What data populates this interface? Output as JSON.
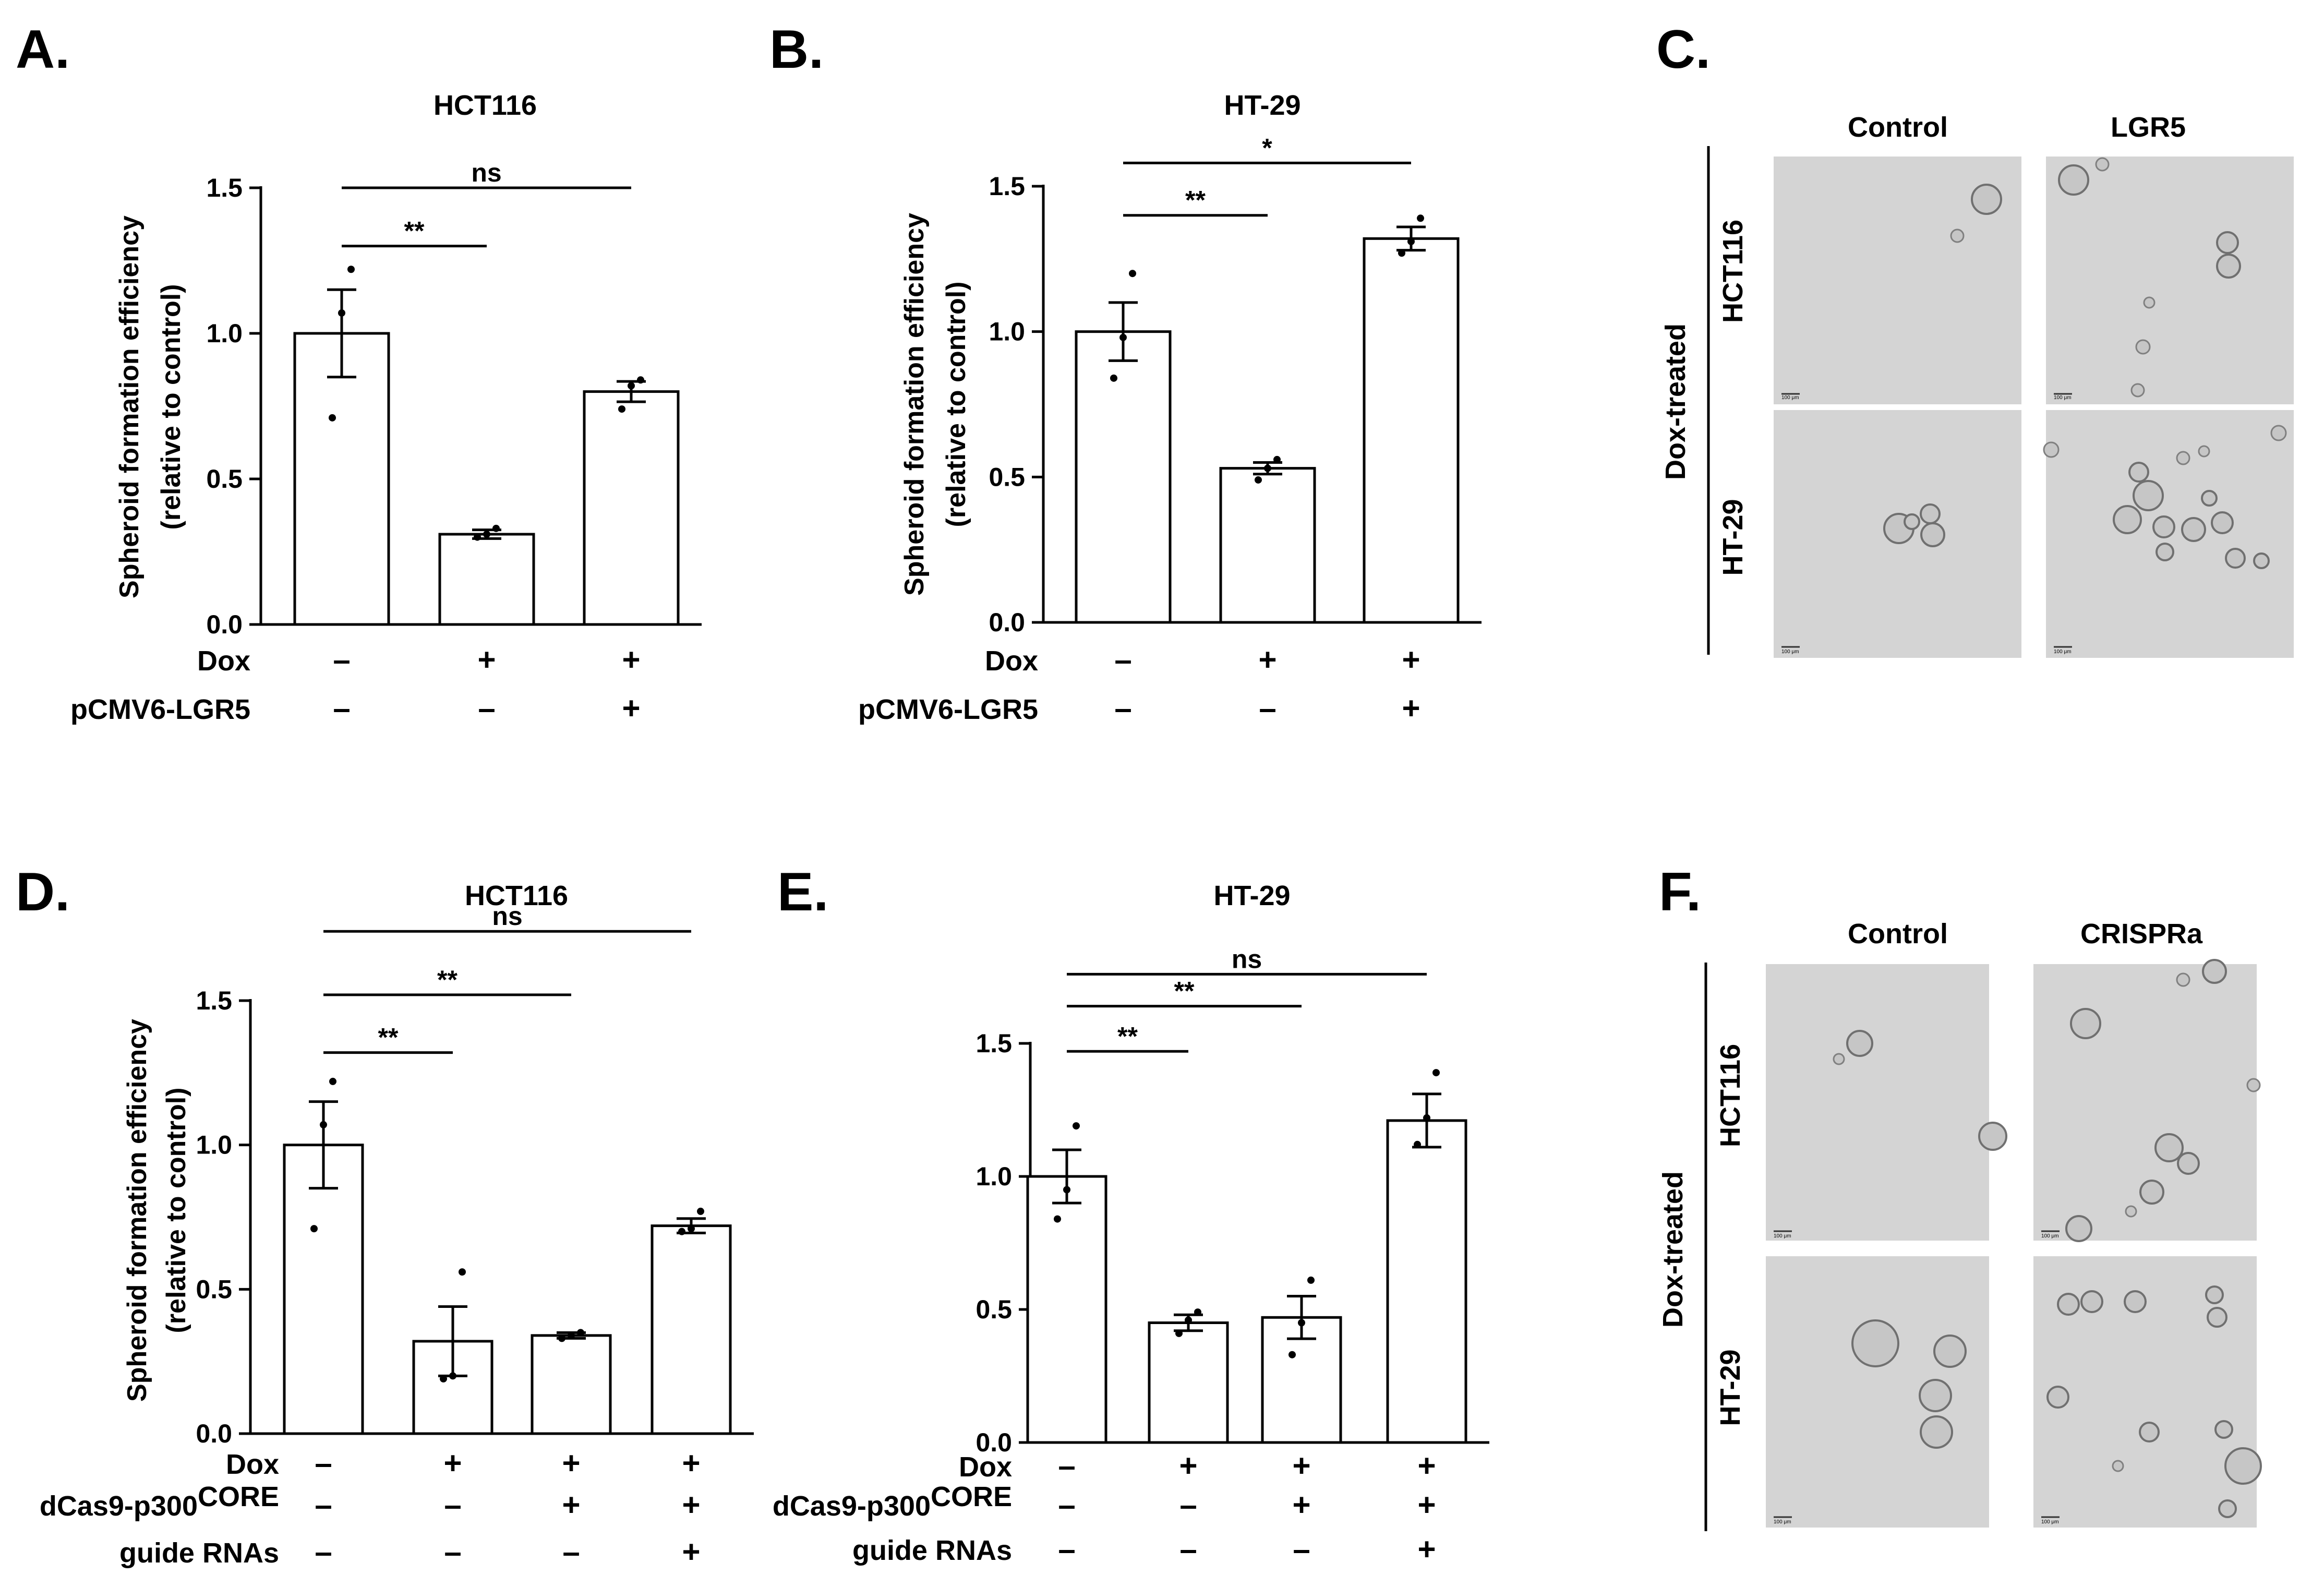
{
  "panels": {
    "A": "A.",
    "B": "B.",
    "C": "C.",
    "D": "D.",
    "E": "E.",
    "F": "F."
  },
  "chart_data": [
    {
      "id": "A",
      "type": "bar",
      "title": "HCT116",
      "ylabel": [
        "Spheroid formation efficiency",
        "(relative to control)"
      ],
      "ylim": [
        0,
        1.5
      ],
      "yticks": [
        "0.0",
        "0.5",
        "1.0",
        "1.5"
      ],
      "bars": [
        {
          "value": 1.0,
          "err": 0.15,
          "points": [
            0.71,
            1.07,
            1.22
          ]
        },
        {
          "value": 0.31,
          "err": 0.015,
          "points": [
            0.3,
            0.31,
            0.33
          ]
        },
        {
          "value": 0.8,
          "err": 0.035,
          "points": [
            0.74,
            0.82,
            0.84
          ]
        }
      ],
      "conditions": [
        {
          "label": "Dox",
          "values": [
            "–",
            "+",
            "+"
          ]
        },
        {
          "label": "pCMV6-LGR5",
          "values": [
            "–",
            "–",
            "+"
          ]
        }
      ],
      "comparisons": [
        {
          "from": 0,
          "to": 1,
          "level": 1.3,
          "label": "**"
        },
        {
          "from": 0,
          "to": 2,
          "level": 1.5,
          "label": "ns"
        }
      ]
    },
    {
      "id": "B",
      "type": "bar",
      "title": "HT-29",
      "ylabel": [
        "Spheroid formation efficiency",
        "(relative to control)"
      ],
      "ylim": [
        0,
        1.5
      ],
      "yticks": [
        "0.0",
        "0.5",
        "1.0",
        "1.5"
      ],
      "bars": [
        {
          "value": 1.0,
          "err": 0.1,
          "points": [
            0.84,
            0.98,
            1.2
          ]
        },
        {
          "value": 0.53,
          "err": 0.02,
          "points": [
            0.49,
            0.53,
            0.56
          ]
        },
        {
          "value": 1.32,
          "err": 0.04,
          "points": [
            1.27,
            1.31,
            1.39
          ]
        }
      ],
      "conditions": [
        {
          "label": "Dox",
          "values": [
            "–",
            "+",
            "+"
          ]
        },
        {
          "label": "pCMV6-LGR5",
          "values": [
            "–",
            "–",
            "+"
          ]
        }
      ],
      "comparisons": [
        {
          "from": 0,
          "to": 1,
          "level": 1.4,
          "label": "**"
        },
        {
          "from": 0,
          "to": 2,
          "level": 1.58,
          "label": "*"
        }
      ]
    },
    {
      "id": "D",
      "type": "bar",
      "title": "HCT116",
      "ylabel": [
        "Spheroid formation efficiency",
        "(relative to control)"
      ],
      "ylim": [
        0,
        1.5
      ],
      "yticks": [
        "0.0",
        "0.5",
        "1.0",
        "1.5"
      ],
      "bars": [
        {
          "value": 1.0,
          "err": 0.15,
          "points": [
            0.71,
            1.07,
            1.22
          ]
        },
        {
          "value": 0.32,
          "err": 0.12,
          "points": [
            0.19,
            0.2,
            0.56
          ]
        },
        {
          "value": 0.34,
          "err": 0.01,
          "points": [
            0.33,
            0.34,
            0.35
          ]
        },
        {
          "value": 0.72,
          "err": 0.025,
          "points": [
            0.7,
            0.71,
            0.77
          ]
        }
      ],
      "conditions": [
        {
          "label": "Dox",
          "values": [
            "–",
            "+",
            "+",
            "+"
          ]
        },
        {
          "label": "dCas9-p300",
          "sup": "CORE",
          "values": [
            "–",
            "–",
            "+",
            "+"
          ]
        },
        {
          "label": "guide RNAs",
          "values": [
            "–",
            "–",
            "–",
            "+"
          ]
        }
      ],
      "comparisons": [
        {
          "from": 0,
          "to": 1,
          "level": 1.32,
          "label": "**"
        },
        {
          "from": 0,
          "to": 2,
          "level": 1.52,
          "label": "**"
        },
        {
          "from": 0,
          "to": 3,
          "level": 1.74,
          "label": "ns"
        }
      ]
    },
    {
      "id": "E",
      "type": "bar",
      "title": "HT-29",
      "ylabel": [],
      "ylim": [
        0,
        1.5
      ],
      "yticks": [
        "0.0",
        "0.5",
        "1.0",
        "1.5"
      ],
      "bars": [
        {
          "value": 1.0,
          "err": 0.1,
          "points": [
            0.84,
            0.95,
            1.19
          ]
        },
        {
          "value": 0.45,
          "err": 0.03,
          "points": [
            0.41,
            0.46,
            0.49
          ]
        },
        {
          "value": 0.47,
          "err": 0.08,
          "points": [
            0.33,
            0.45,
            0.61
          ]
        },
        {
          "value": 1.21,
          "err": 0.1,
          "points": [
            1.12,
            1.22,
            1.39
          ]
        }
      ],
      "conditions": [
        {
          "label": "Dox",
          "values": [
            "–",
            "+",
            "+",
            "+"
          ]
        },
        {
          "label": "dCas9-p300",
          "sup": "CORE",
          "values": [
            "–",
            "–",
            "+",
            "+"
          ]
        },
        {
          "label": "guide RNAs",
          "values": [
            "–",
            "–",
            "–",
            "+"
          ]
        }
      ],
      "comparisons": [
        {
          "from": 0,
          "to": 1,
          "level": 1.47,
          "label": "**"
        },
        {
          "from": 0,
          "to": 2,
          "level": 1.64,
          "label": "**"
        },
        {
          "from": 0,
          "to": 3,
          "level": 1.76,
          "label": "ns"
        }
      ]
    }
  ],
  "micrographs": {
    "C": {
      "columns": [
        "Control",
        "LGR5"
      ],
      "rows": [
        "HCT116",
        "HT-29"
      ],
      "side": "Dox-treated",
      "scale": "100 μm"
    },
    "F": {
      "columns": [
        "Control",
        "CRISPRa"
      ],
      "rows": [
        "HCT116",
        "HT-29"
      ],
      "side": "Dox-treated",
      "scale": "100 μm"
    }
  },
  "colors": {
    "bar_fill": "#ffffff",
    "ink": "#000000",
    "micro_bg": "#d4d4d4",
    "micro_cell": "#6e6e6e"
  }
}
